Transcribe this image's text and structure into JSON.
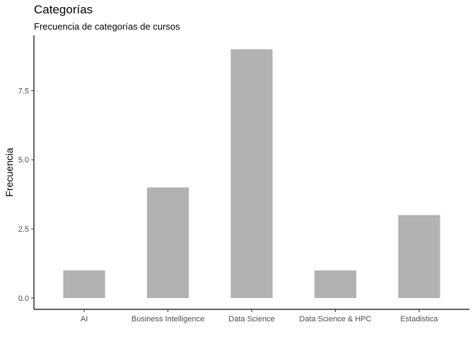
{
  "chart_data": {
    "type": "bar",
    "title": "Categorías",
    "subtitle": "Frecuencia de categorías de cursos",
    "xlabel": "",
    "ylabel": "Frecuencia",
    "categories": [
      "AI",
      "Business Intelligence",
      "Data Science",
      "Data Science & HPC",
      "Estadistica"
    ],
    "values": [
      1,
      4,
      9,
      1,
      3
    ],
    "ylim": [
      0,
      9.45
    ],
    "yticks": [
      0,
      2.5,
      5,
      7.5
    ],
    "ytick_labels": [
      "0.0",
      "2.5",
      "5.0",
      "7.5"
    ],
    "grid": false,
    "bar_color": "#b2b2b2",
    "axis_color": "#000000"
  }
}
